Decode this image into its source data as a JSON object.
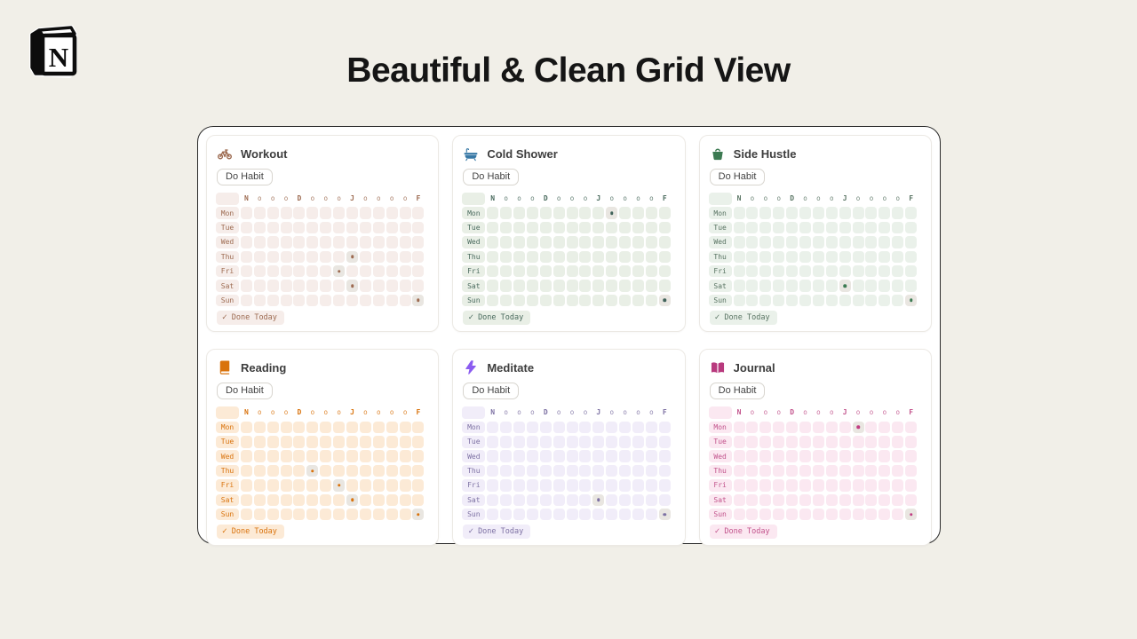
{
  "page": {
    "title": "Beautiful & Clean Grid View",
    "logo_letter": "N"
  },
  "grid": {
    "month_headers": [
      "N",
      "o",
      "o",
      "o",
      "D",
      "o",
      "o",
      "o",
      "J",
      "o",
      "o",
      "o",
      "o",
      "F"
    ],
    "day_labels": [
      "Mon",
      "Tue",
      "Wed",
      "Thu",
      "Fri",
      "Sat",
      "Sun"
    ],
    "do_button_label": "Do Habit",
    "footer_check": "✓",
    "footer_label": "Done Today",
    "done_cell_bg": "#e9e6e1"
  },
  "cards": [
    {
      "title": "Workout",
      "icon": "bicycle-icon",
      "icon_color": "#9d6b51",
      "accent": "#9d6b51",
      "cell_bg": "#f6edea",
      "dot_color": "#9d6b51",
      "done_days": [
        {
          "day": "Thu",
          "col": 9
        },
        {
          "day": "Fri",
          "col": 8
        },
        {
          "day": "Sat",
          "col": 9
        },
        {
          "day": "Sun",
          "col": 14
        }
      ]
    },
    {
      "title": "Cold Shower",
      "icon": "bathtub-icon",
      "icon_color": "#3879a6",
      "accent": "#4a6b5e",
      "cell_bg": "#e9efe6",
      "dot_color": "#41635a",
      "done_days": [
        {
          "day": "Mon",
          "col": 10
        },
        {
          "day": "Sun",
          "col": 14
        }
      ]
    },
    {
      "title": "Side Hustle",
      "icon": "basket-icon",
      "icon_color": "#3c7a52",
      "accent": "#597463",
      "cell_bg": "#eaf1ea",
      "dot_color": "#3c7a52",
      "done_days": [
        {
          "day": "Sat",
          "col": 9
        },
        {
          "day": "Sun",
          "col": 14
        }
      ]
    },
    {
      "title": "Reading",
      "icon": "book-icon",
      "icon_color": "#d9730d",
      "accent": "#d9730d",
      "cell_bg": "#fcead6",
      "dot_color": "#d9730d",
      "done_days": [
        {
          "day": "Thu",
          "col": 6
        },
        {
          "day": "Fri",
          "col": 8
        },
        {
          "day": "Sat",
          "col": 9
        },
        {
          "day": "Sun",
          "col": 14
        }
      ]
    },
    {
      "title": "Meditate",
      "icon": "lightning-icon",
      "icon_color": "#8b5cf0",
      "accent": "#7d71a3",
      "cell_bg": "#f1edf9",
      "dot_color": "#7d71a3",
      "done_days": [
        {
          "day": "Sat",
          "col": 9
        },
        {
          "day": "Sun",
          "col": 14
        }
      ]
    },
    {
      "title": "Journal",
      "icon": "open-book-icon",
      "icon_color": "#b83a7e",
      "accent": "#c2538c",
      "cell_bg": "#fbe8f1",
      "dot_color": "#c13e82",
      "done_days": [
        {
          "day": "Mon",
          "col": 10
        },
        {
          "day": "Sun",
          "col": 14
        }
      ]
    }
  ]
}
